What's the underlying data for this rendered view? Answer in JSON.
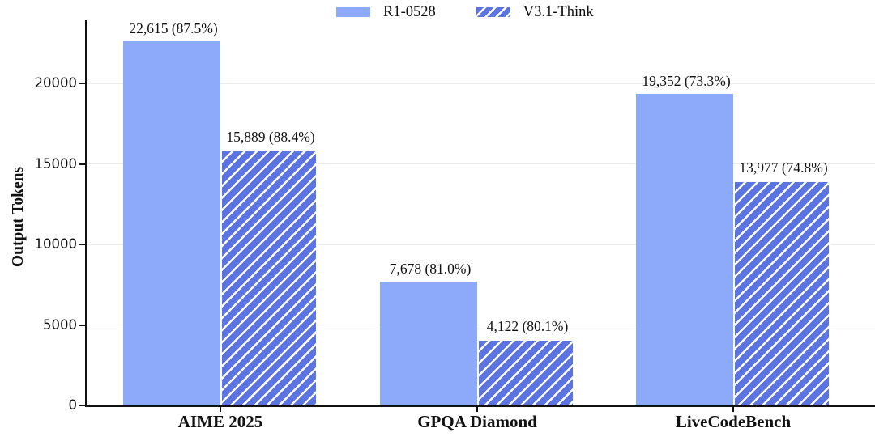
{
  "chart_data": {
    "type": "bar",
    "title": "",
    "xlabel": "",
    "ylabel": "Output Tokens",
    "categories": [
      "AIME 2025",
      "GPQA Diamond",
      "LiveCodeBench"
    ],
    "series": [
      {
        "name": "R1-0528",
        "pattern": "solid",
        "color": "#8DA9FA",
        "values": [
          22615,
          7678,
          19352
        ],
        "bar_labels": [
          "22,615 (87.5%)",
          "7,678 (81.0%)",
          "19,352 (73.3%)"
        ]
      },
      {
        "name": "V3.1-Think",
        "pattern": "hatched",
        "color": "#5B74E1",
        "hatch_color": "#FFFFFF",
        "values": [
          15889,
          4122,
          13977
        ],
        "bar_labels": [
          "15,889 (88.4%)",
          "4,122 (80.1%)",
          "13,977 (74.8%)"
        ]
      }
    ],
    "y_ticks": [
      0,
      5000,
      10000,
      15000,
      20000
    ],
    "ylim": [
      0,
      23900
    ],
    "grid": "horizontal",
    "legend_position": "top-center"
  },
  "style": {
    "grid_color": "#ECECEC",
    "axis_color": "#111111",
    "text_color": "#111111",
    "background": "#FFFFFF"
  }
}
